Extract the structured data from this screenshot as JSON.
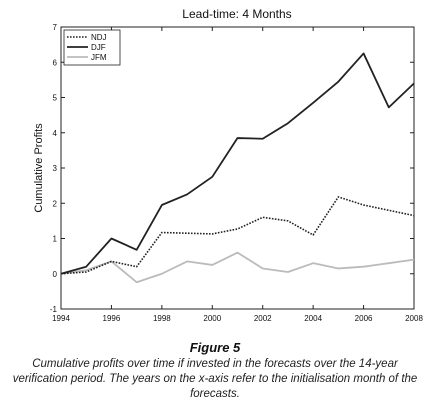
{
  "chart_data": {
    "type": "line",
    "title": "Lead-time: 4 Months",
    "xlabel": "",
    "ylabel": "Cumulative Profits",
    "xlim": [
      1994,
      2008
    ],
    "ylim": [
      -1,
      7
    ],
    "xticks": [
      1994,
      1996,
      1998,
      2000,
      2002,
      2004,
      2006,
      2008
    ],
    "yticks": [
      -1,
      0,
      1,
      2,
      3,
      4,
      5,
      6,
      7
    ],
    "x": [
      1994,
      1995,
      1996,
      1997,
      1998,
      1999,
      2000,
      2001,
      2002,
      2003,
      2004,
      2005,
      2006,
      2007,
      2008
    ],
    "legend_position": "top-left",
    "grid": false,
    "series": [
      {
        "name": "NDJ",
        "style": "dotted",
        "color": "#222222",
        "values": [
          0.0,
          0.05,
          0.35,
          0.2,
          1.17,
          1.15,
          1.13,
          1.27,
          1.6,
          1.5,
          1.1,
          2.18,
          1.95,
          1.8,
          1.65
        ]
      },
      {
        "name": "DJF",
        "style": "solid",
        "color": "#222222",
        "values": [
          0.0,
          0.2,
          1.0,
          0.68,
          1.95,
          2.25,
          2.75,
          3.85,
          3.83,
          4.27,
          4.85,
          5.45,
          6.25,
          4.72,
          5.4
        ]
      },
      {
        "name": "JFM",
        "style": "solid",
        "color": "#bbbbbb",
        "values": [
          0.0,
          0.1,
          0.35,
          -0.24,
          0.0,
          0.35,
          0.25,
          0.6,
          0.15,
          0.05,
          0.3,
          0.15,
          0.2,
          0.3,
          0.4
        ]
      }
    ]
  },
  "caption": {
    "label": "Figure 5",
    "text": "Cumulative profits over time if invested in the forecasts over the 14-year verification period. The years on the x-axis refer to the initialisation month of the forecasts."
  }
}
